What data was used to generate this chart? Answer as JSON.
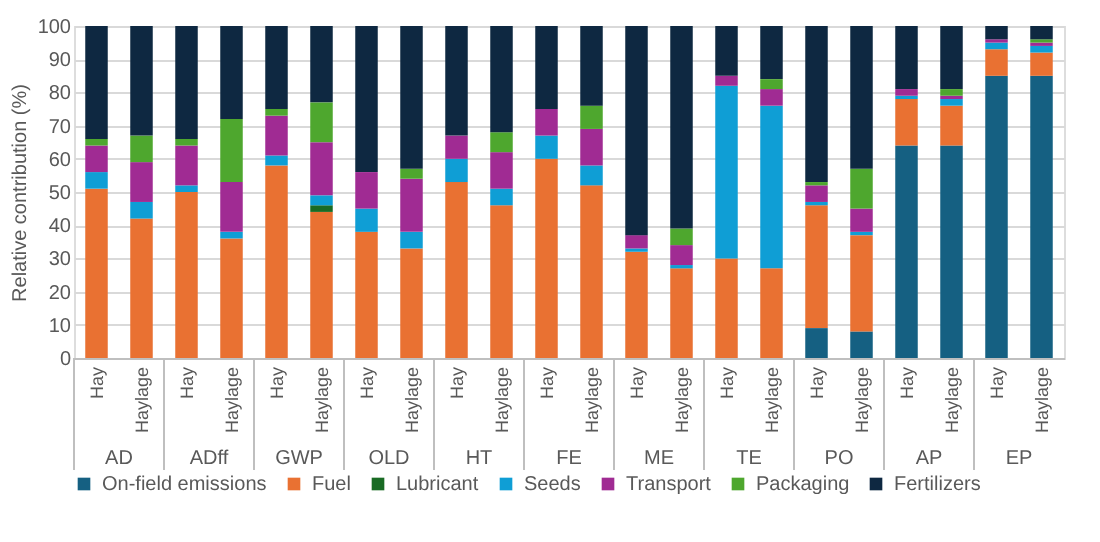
{
  "chart_data": {
    "type": "bar",
    "stacked": true,
    "ylabel": "Relative contribution (%)",
    "categories": [
      "Hay",
      "Haylage",
      "Hay",
      "Haylage",
      "Hay",
      "Haylage",
      "Hay",
      "Haylage",
      "Hay",
      "Haylage",
      "Hay",
      "Haylage",
      "Hay",
      "Haylage",
      "Hay",
      "Haylage",
      "Hay",
      "Haylage",
      "Hay",
      "Haylage",
      "Hay",
      "Haylage"
    ],
    "annotations": [
      "AD",
      "ADff",
      "GWP",
      "OLD",
      "HT",
      "FE",
      "ME",
      "TE",
      "PO",
      "AP",
      "EP"
    ],
    "series": [
      {
        "name": "On-field emissions",
        "color": "#156082",
        "values": [
          0,
          0,
          0,
          0,
          0,
          0,
          0,
          0,
          0,
          0,
          0,
          0,
          0,
          0,
          0,
          0,
          9,
          8,
          64,
          64,
          85,
          85
        ]
      },
      {
        "name": "Fuel",
        "color": "#e97132",
        "values": [
          51,
          42,
          50,
          36,
          58,
          44,
          38,
          33,
          53,
          46,
          60,
          52,
          32,
          27,
          30,
          27,
          37,
          29,
          14,
          12,
          8,
          7
        ]
      },
      {
        "name": "Lubricant",
        "color": "#196b24",
        "values": [
          0,
          0,
          0,
          0,
          0,
          2,
          0,
          0,
          0,
          0,
          0,
          0,
          0,
          0,
          0,
          0,
          0,
          0,
          0,
          0,
          0,
          0
        ]
      },
      {
        "name": "Seeds",
        "color": "#0f9ed5",
        "values": [
          5,
          5,
          2,
          2,
          3,
          3,
          7,
          5,
          7,
          5,
          7,
          6,
          1,
          1,
          52,
          49,
          1,
          1,
          1,
          2,
          2,
          2
        ]
      },
      {
        "name": "Transport",
        "color": "#a02b93",
        "values": [
          8,
          12,
          12,
          15,
          12,
          16,
          11,
          16,
          7,
          11,
          8,
          11,
          4,
          6,
          3,
          5,
          5,
          7,
          2,
          1,
          1,
          1
        ]
      },
      {
        "name": "Packaging",
        "color": "#4ea72e",
        "values": [
          2,
          8,
          2,
          19,
          2,
          12,
          0,
          3,
          0,
          6,
          0,
          7,
          0,
          5,
          0,
          3,
          1,
          12,
          0,
          2,
          0,
          1
        ]
      },
      {
        "name": "Fertilizers",
        "color": "#0e2841",
        "values": [
          34,
          33,
          34,
          28,
          25,
          23,
          44,
          43,
          33,
          32,
          25,
          24,
          63,
          61,
          15,
          16,
          47,
          43,
          19,
          19,
          4,
          4
        ]
      }
    ],
    "ylim": [
      0,
      100
    ],
    "yticks": [
      0,
      10,
      20,
      30,
      40,
      50,
      60,
      70,
      80,
      90,
      100
    ],
    "grid": "y",
    "legend": "bottom"
  }
}
